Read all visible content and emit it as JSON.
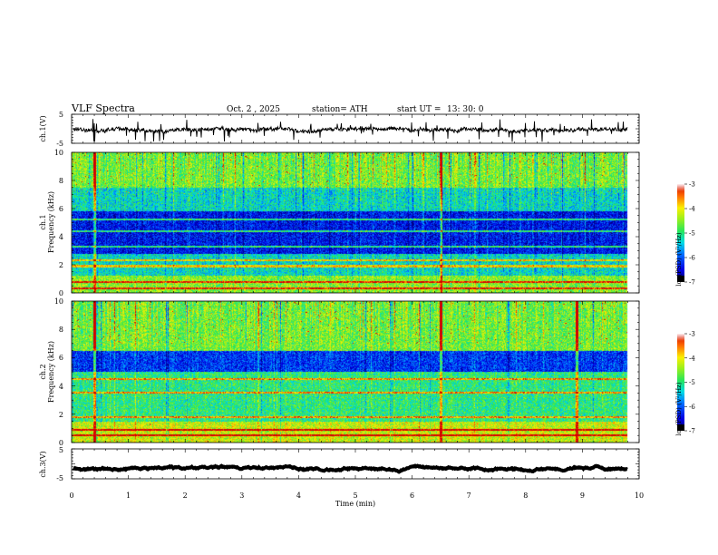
{
  "header": {
    "title": "VLF  Spectra",
    "date": "Oct. 2  , 2025",
    "station": "station= ATH",
    "start_label": "start  UT  =",
    "start_time": "13: 30: 0"
  },
  "chart_data": [
    {
      "type": "line",
      "name": "ch1-waveform",
      "ylabel": "ch.1(V)",
      "ylim": [
        -5,
        5
      ],
      "y_ticks": [
        "5",
        "-5"
      ],
      "xlim": [
        0,
        10
      ],
      "description_mean": -0.3,
      "style": "noisy waveform, about +-1 V amplitude with sparse spikes",
      "color": "#000000"
    },
    {
      "type": "heatmap",
      "name": "ch1-spectrogram",
      "ylabel_channel": "ch.1",
      "ylabel": "Frequency  (kHz)",
      "xlim": [
        0,
        10
      ],
      "ylim": [
        0,
        10
      ],
      "y_ticks": [
        "10",
        "8",
        "6",
        "4",
        "2",
        "0"
      ],
      "data_end_min": 9.8,
      "colorbar": {
        "label": "log(PSD) (V²/Hz)",
        "range": [
          -7,
          -3
        ],
        "ticks": [
          "-3",
          "-4",
          "-5",
          "-6",
          "-7"
        ]
      },
      "bands_khz": [
        {
          "from": 0,
          "to": 1.2,
          "log_psd": -4.5
        },
        {
          "from": 1.2,
          "to": 2.8,
          "log_psd": -5.3
        },
        {
          "from": 2.8,
          "to": 5.8,
          "log_psd": -6.4
        },
        {
          "from": 5.8,
          "to": 7.5,
          "log_psd": -5.3
        },
        {
          "from": 7.5,
          "to": 10,
          "log_psd": -4.6
        }
      ],
      "lines_khz": [
        0.3,
        0.8,
        1.9,
        2.3,
        3.3,
        4.4,
        5.2
      ],
      "sferic_columns_min": [
        0.4,
        6.5
      ]
    },
    {
      "type": "heatmap",
      "name": "ch2-spectrogram",
      "ylabel_channel": "ch.2",
      "ylabel": "Frequency  (kHz)",
      "xlim": [
        0,
        10
      ],
      "ylim": [
        0,
        10
      ],
      "y_ticks": [
        "10",
        "8",
        "6",
        "4",
        "2",
        "0"
      ],
      "data_end_min": 9.8,
      "colorbar": {
        "label": "log(PSD) (V²/Hz)",
        "range": [
          -7,
          -3
        ],
        "ticks": [
          "-3",
          "-4",
          "-5",
          "-6",
          "-7"
        ]
      },
      "bands_khz": [
        {
          "from": 0,
          "to": 1.5,
          "log_psd": -4.2
        },
        {
          "from": 1.5,
          "to": 5.0,
          "log_psd": -5.0
        },
        {
          "from": 5.0,
          "to": 6.5,
          "log_psd": -6.2
        },
        {
          "from": 6.5,
          "to": 10,
          "log_psd": -4.6
        }
      ],
      "lines_khz": [
        0.5,
        0.9,
        1.8,
        3.5,
        4.5
      ],
      "sferic_columns_min": [
        0.4,
        6.5,
        8.9
      ]
    },
    {
      "type": "line",
      "name": "ch3-waveform",
      "ylabel": "ch.3(V)",
      "ylim": [
        -5,
        5
      ],
      "y_ticks": [
        "5",
        "-5"
      ],
      "xlim": [
        0,
        10
      ],
      "description_mean": -1.5,
      "style": "flat thick trace",
      "color": "#000000"
    }
  ],
  "x_axis": {
    "label": "Time  (min)",
    "ticks": [
      "0",
      "1",
      "2",
      "3",
      "4",
      "5",
      "6",
      "7",
      "8",
      "9",
      "10"
    ],
    "range": [
      0,
      10
    ]
  }
}
